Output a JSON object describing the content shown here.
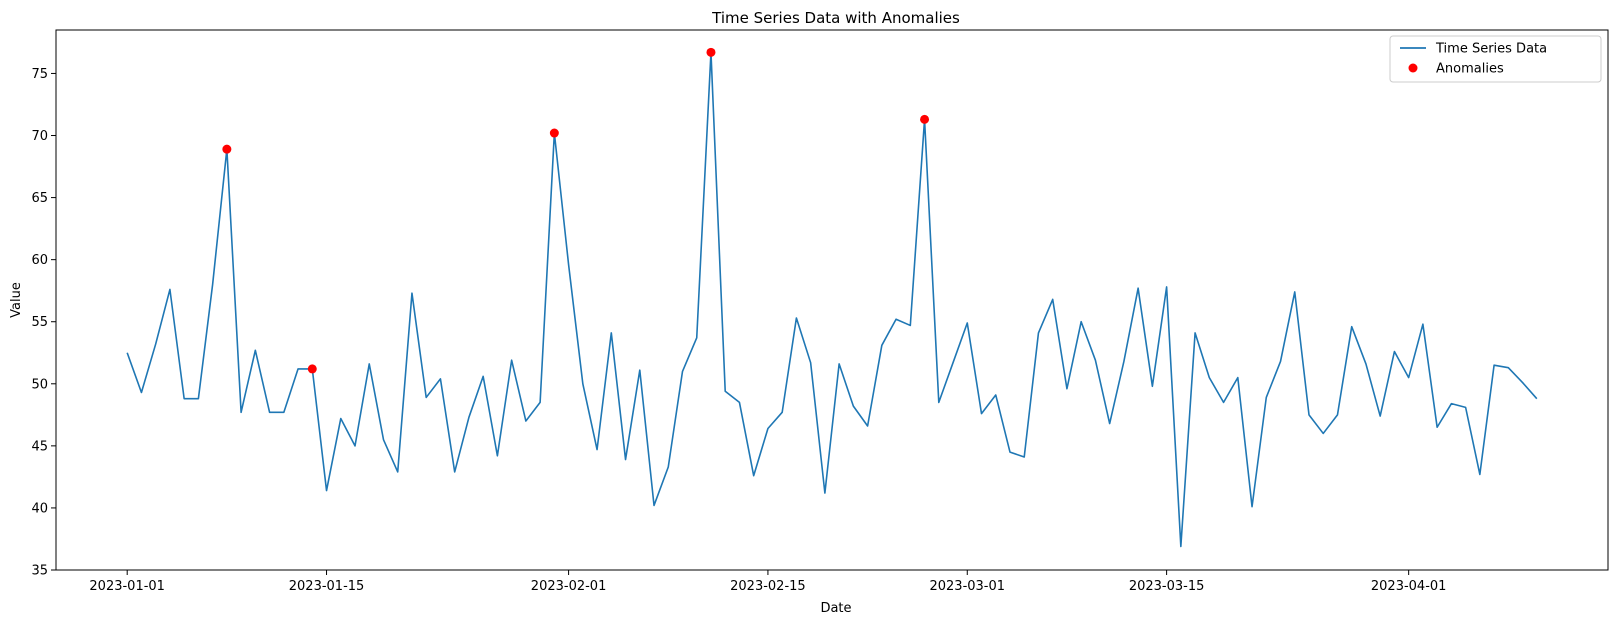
{
  "chart_data": {
    "type": "line",
    "title": "Time Series Data with Anomalies",
    "xlabel": "Date",
    "ylabel": "Value",
    "xlim": [
      "2022-12-27",
      "2023-04-15"
    ],
    "ylim": [
      35,
      78.5
    ],
    "yticks": [
      35,
      40,
      45,
      50,
      55,
      60,
      65,
      70,
      75
    ],
    "xticks": [
      "2023-01-01",
      "2023-01-15",
      "2023-02-01",
      "2023-02-15",
      "2023-03-01",
      "2023-03-15",
      "2023-04-01"
    ],
    "grid": false,
    "legend_position": "top-right",
    "series": [
      {
        "name": "Time Series Data",
        "color": "#1f77b4",
        "x": [
          "2023-01-01",
          "2023-01-02",
          "2023-01-03",
          "2023-01-04",
          "2023-01-05",
          "2023-01-06",
          "2023-01-07",
          "2023-01-08",
          "2023-01-09",
          "2023-01-10",
          "2023-01-11",
          "2023-01-12",
          "2023-01-13",
          "2023-01-14",
          "2023-01-15",
          "2023-01-16",
          "2023-01-17",
          "2023-01-18",
          "2023-01-19",
          "2023-01-20",
          "2023-01-21",
          "2023-01-22",
          "2023-01-23",
          "2023-01-24",
          "2023-01-25",
          "2023-01-26",
          "2023-01-27",
          "2023-01-28",
          "2023-01-29",
          "2023-01-30",
          "2023-01-31",
          "2023-02-01",
          "2023-02-02",
          "2023-02-03",
          "2023-02-04",
          "2023-02-05",
          "2023-02-06",
          "2023-02-07",
          "2023-02-08",
          "2023-02-09",
          "2023-02-10",
          "2023-02-11",
          "2023-02-12",
          "2023-02-13",
          "2023-02-14",
          "2023-02-15",
          "2023-02-16",
          "2023-02-17",
          "2023-02-18",
          "2023-02-19",
          "2023-02-20",
          "2023-02-21",
          "2023-02-22",
          "2023-02-23",
          "2023-02-24",
          "2023-02-25",
          "2023-02-26",
          "2023-02-27",
          "2023-02-28",
          "2023-03-01",
          "2023-03-02",
          "2023-03-03",
          "2023-03-04",
          "2023-03-05",
          "2023-03-06",
          "2023-03-07",
          "2023-03-08",
          "2023-03-09",
          "2023-03-10",
          "2023-03-11",
          "2023-03-12",
          "2023-03-13",
          "2023-03-14",
          "2023-03-15",
          "2023-03-16",
          "2023-03-17",
          "2023-03-18",
          "2023-03-19",
          "2023-03-20",
          "2023-03-21",
          "2023-03-22",
          "2023-03-23",
          "2023-03-24",
          "2023-03-25",
          "2023-03-26",
          "2023-03-27",
          "2023-03-28",
          "2023-03-29",
          "2023-03-30",
          "2023-03-31",
          "2023-04-01",
          "2023-04-02",
          "2023-04-03",
          "2023-04-04",
          "2023-04-05",
          "2023-04-06",
          "2023-04-07",
          "2023-04-08",
          "2023-04-09",
          "2023-04-10"
        ],
        "values": [
          52.5,
          49.3,
          53.2,
          57.6,
          48.8,
          48.8,
          58.0,
          68.9,
          47.7,
          52.7,
          47.7,
          47.7,
          51.2,
          51.2,
          41.4,
          47.2,
          45.0,
          51.6,
          45.5,
          42.9,
          57.3,
          48.9,
          50.4,
          42.9,
          47.3,
          50.6,
          44.2,
          51.9,
          47.0,
          48.5,
          70.2,
          59.6,
          50.0,
          44.7,
          54.1,
          43.9,
          51.1,
          40.2,
          43.3,
          51.0,
          53.7,
          76.7,
          49.4,
          48.5,
          42.6,
          46.4,
          47.7,
          55.3,
          51.7,
          41.2,
          51.6,
          48.2,
          46.6,
          53.1,
          55.2,
          54.7,
          71.3,
          48.5,
          51.7,
          54.9,
          47.6,
          49.1,
          44.5,
          44.1,
          54.1,
          56.8,
          49.6,
          55.0,
          51.9,
          46.8,
          51.8,
          57.7,
          49.8,
          57.8,
          36.9,
          54.1,
          50.5,
          48.5,
          50.5,
          40.1,
          48.9,
          51.8,
          57.4,
          47.5,
          46.0,
          47.5,
          54.6,
          51.6,
          47.4,
          52.6,
          50.5,
          54.8,
          46.5,
          48.4,
          48.1,
          42.7,
          51.5,
          51.3,
          50.1,
          48.8
        ]
      }
    ],
    "anomalies": {
      "name": "Anomalies",
      "color": "#ff0000",
      "x": [
        "2023-01-08",
        "2023-01-14",
        "2023-01-31",
        "2023-02-11",
        "2023-02-26"
      ],
      "values": [
        68.9,
        51.2,
        70.2,
        76.7,
        71.3
      ]
    }
  }
}
